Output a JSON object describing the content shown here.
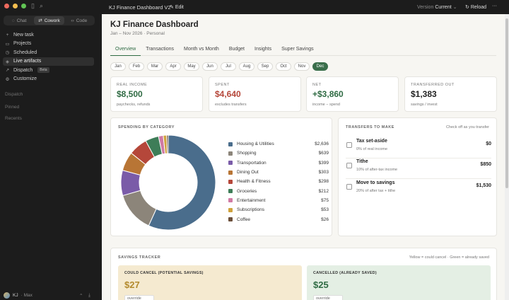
{
  "sidebar": {
    "modes": [
      {
        "label": "Chat"
      },
      {
        "label": "Cowork"
      },
      {
        "label": "Code"
      }
    ],
    "items": [
      {
        "label": "New task",
        "icon": "+"
      },
      {
        "label": "Projects",
        "icon": "▭"
      },
      {
        "label": "Scheduled",
        "icon": "◷"
      },
      {
        "label": "Live artifacts",
        "icon": "◈"
      },
      {
        "label": "Dispatch",
        "icon": "↗",
        "badge": "Beta"
      },
      {
        "label": "Customize",
        "icon": "⚙"
      }
    ],
    "sections": [
      "Dispatch",
      "Pinned",
      "Recents"
    ],
    "user": {
      "name": "KJ",
      "plan": "Max"
    }
  },
  "topbar": {
    "title": "KJ Finance Dashboard V2",
    "edit_label": "Edit",
    "version_label": "Version",
    "version_value": "Current",
    "reload_label": "Reload",
    "more": "···"
  },
  "dashboard": {
    "title": "KJ Finance Dashboard",
    "subtitle": "Jan – Nov 2026 · Personal",
    "tabs": [
      "Overview",
      "Transactions",
      "Month vs Month",
      "Budget",
      "Insights",
      "Super Savings"
    ],
    "months": [
      "Jan",
      "Feb",
      "Mar",
      "Apr",
      "May",
      "Jun",
      "Jul",
      "Aug",
      "Sep",
      "Oct",
      "Nov",
      "Dec"
    ],
    "kpis": [
      {
        "label": "REAL INCOME",
        "value": "$8,500",
        "sub": "paychecks, refunds",
        "color": "#2f6b43"
      },
      {
        "label": "SPENT",
        "value": "$4,640",
        "sub": "excludes transfers",
        "color": "#b5473a"
      },
      {
        "label": "NET",
        "value": "+$3,860",
        "sub": "income − spend",
        "color": "#2f6b43"
      },
      {
        "label": "TRANSFERRED OUT",
        "value": "$1,383",
        "sub": "savings / invest",
        "color": "#222222"
      }
    ],
    "spending": {
      "title": "SPENDING BY CATEGORY",
      "items": [
        {
          "label": "Housing & Utilities",
          "value": "$2,636",
          "amount": 2636,
          "color": "#4a6d8c"
        },
        {
          "label": "Shopping",
          "value": "$639",
          "amount": 639,
          "color": "#8c857a"
        },
        {
          "label": "Transportation",
          "value": "$399",
          "amount": 399,
          "color": "#7a5ba8"
        },
        {
          "label": "Dining Out",
          "value": "$303",
          "amount": 303,
          "color": "#b87535"
        },
        {
          "label": "Health & Fitness",
          "value": "$298",
          "amount": 298,
          "color": "#b5473a"
        },
        {
          "label": "Groceries",
          "value": "$212",
          "amount": 212,
          "color": "#3e7d58"
        },
        {
          "label": "Entertainment",
          "value": "$75",
          "amount": 75,
          "color": "#d07aa4"
        },
        {
          "label": "Subscriptions",
          "value": "$53",
          "amount": 53,
          "color": "#cfa23c"
        },
        {
          "label": "Coffee",
          "value": "$26",
          "amount": 26,
          "color": "#6b4f3a"
        }
      ]
    },
    "transfers": {
      "title": "TRANSFERS TO MAKE",
      "note": "Check off as you transfer",
      "items": [
        {
          "name": "Tax set-aside",
          "desc": "0% of real income",
          "amount": "$0"
        },
        {
          "name": "Tithe",
          "desc": "10% of after-tax income",
          "amount": "$850"
        },
        {
          "name": "Move to savings",
          "desc": "20% of after tax + tithe",
          "amount": "$1,530"
        }
      ]
    },
    "savings": {
      "title": "SAVINGS TRACKER",
      "note": "Yellow = could cancel · Green = already saved",
      "could_cancel": {
        "label": "COULD CANCEL (POTENTIAL SAVINGS)",
        "value": "$27",
        "override": "override",
        "bg": "#f5ead0",
        "color": "#b38a2e"
      },
      "cancelled": {
        "label": "CANCELLED (ALREADY SAVED)",
        "value": "$25",
        "override": "override",
        "bg": "#e4efe4",
        "color": "#2f6b43"
      }
    }
  }
}
